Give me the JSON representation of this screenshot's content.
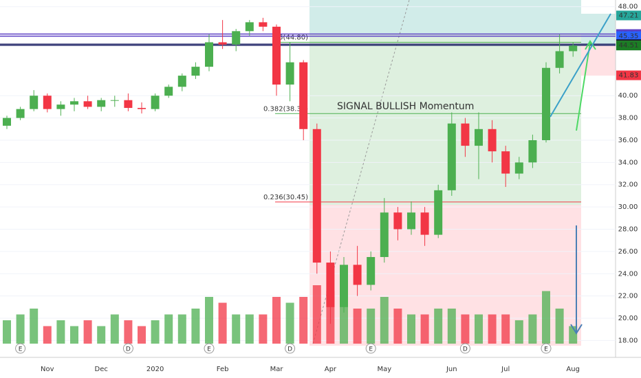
{
  "chart_data": {
    "type": "candlestick",
    "categories": [
      null,
      null,
      null,
      "Nov",
      null,
      null,
      null,
      "Dec",
      null,
      null,
      null,
      "2020",
      null,
      null,
      null,
      null,
      "Feb",
      null,
      null,
      null,
      "Mar",
      null,
      null,
      null,
      "Apr",
      null,
      null,
      null,
      "May",
      null,
      null,
      null,
      null,
      "Jun",
      null,
      null,
      null,
      "Jul",
      null,
      null,
      null,
      null,
      "Aug"
    ],
    "open": [
      37.3,
      38.0,
      38.8,
      40.0,
      38.8,
      39.2,
      39.5,
      39.0,
      39.6,
      39.6,
      38.9,
      38.8,
      40.0,
      40.8,
      41.8,
      42.6,
      44.8,
      44.6,
      45.8,
      46.6,
      46.2,
      41.0,
      43.0,
      37.0,
      25.0,
      21.0,
      24.8,
      23.0,
      25.5,
      29.5,
      28.0,
      29.5,
      27.5,
      31.5,
      37.5,
      35.5,
      37.0,
      35.0,
      33.0,
      34.0,
      36.0,
      42.5,
      44.0
    ],
    "high": [
      38.2,
      39.0,
      40.5,
      40.2,
      39.5,
      39.8,
      40.0,
      39.8,
      40.0,
      40.2,
      39.4,
      40.2,
      41.0,
      42.0,
      43.0,
      45.5,
      46.8,
      46.0,
      46.8,
      47.0,
      46.4,
      44.8,
      43.2,
      37.5,
      26.0,
      25.5,
      26.5,
      26.0,
      30.8,
      30.0,
      30.5,
      30.0,
      32.0,
      38.5,
      38.0,
      38.5,
      37.8,
      35.5,
      34.5,
      36.5,
      43.0,
      45.5,
      44.8
    ],
    "low": [
      37.0,
      37.8,
      38.6,
      38.5,
      38.2,
      38.6,
      38.8,
      38.6,
      39.0,
      38.6,
      38.4,
      38.6,
      39.8,
      40.4,
      41.5,
      42.2,
      44.2,
      44.0,
      45.4,
      45.8,
      40.0,
      39.5,
      36.0,
      24.0,
      19.5,
      20.5,
      22.0,
      22.5,
      25.0,
      27.0,
      27.5,
      26.5,
      27.2,
      31.0,
      34.5,
      32.5,
      34.0,
      31.8,
      32.5,
      33.5,
      35.8,
      42.0,
      43.5
    ],
    "close": [
      38.0,
      38.8,
      40.0,
      38.8,
      39.2,
      39.5,
      39.0,
      39.6,
      39.6,
      38.9,
      38.8,
      40.0,
      40.8,
      41.8,
      42.6,
      44.8,
      44.6,
      45.8,
      46.6,
      46.2,
      41.0,
      43.0,
      37.0,
      25.0,
      21.0,
      24.8,
      23.0,
      25.5,
      29.5,
      28.0,
      29.5,
      27.5,
      31.5,
      37.5,
      35.5,
      37.0,
      35.0,
      33.0,
      34.0,
      36.0,
      42.5,
      44.0,
      44.5
    ],
    "volume": [
      4,
      5,
      6,
      3,
      4,
      3,
      4,
      3,
      5,
      4,
      3,
      4,
      5,
      5,
      6,
      8,
      7,
      5,
      5,
      5,
      8,
      7,
      8,
      10,
      9,
      7,
      6,
      6,
      8,
      6,
      5,
      5,
      6,
      6,
      5,
      5,
      5,
      5,
      4,
      5,
      9,
      6,
      3
    ],
    "up_color": "#4caf50",
    "down_color": "#f23645",
    "ylim": [
      16.48,
      48.6
    ],
    "yticks": [
      {
        "value": 18,
        "label": "18.00"
      },
      {
        "value": 20,
        "label": "20.00"
      },
      {
        "value": 22,
        "label": "22.00"
      },
      {
        "value": 24,
        "label": "24.00"
      },
      {
        "value": 26,
        "label": "26.00"
      },
      {
        "value": 28,
        "label": "28.00"
      },
      {
        "value": 30,
        "label": "30.00"
      },
      {
        "value": 32,
        "label": "32.00"
      },
      {
        "value": 34,
        "label": "34.00"
      },
      {
        "value": 36,
        "label": "36.00"
      },
      {
        "value": 38,
        "label": "38.00"
      },
      {
        "value": 40,
        "label": "40.00"
      },
      {
        "value": 48,
        "label": "48.00"
      }
    ],
    "grid": true,
    "levels": [
      {
        "value": 45.54,
        "color": "#5b3fc4"
      },
      {
        "value": 45.35,
        "color": "#5b3fc4"
      },
      {
        "value": 44.63,
        "color": "#2a2e6e"
      },
      {
        "value": 44.52,
        "color": "#2a2e6e"
      }
    ],
    "fib": [
      {
        "label": "0.5(44.80)",
        "value": 44.8,
        "color": "#4caf50"
      },
      {
        "label": "0.382(38.39)",
        "value": 38.39,
        "color": "#4caf50"
      },
      {
        "label": "0.236(30.45)",
        "value": 30.45,
        "color": "#f23645"
      }
    ],
    "price_labels": [
      {
        "value": 47.21,
        "color": "#26a69a"
      },
      {
        "value": 45.54,
        "color": "#5b3fc4"
      },
      {
        "value": 45.35,
        "color": "#2962ff"
      },
      {
        "value": 44.63,
        "color": "#131722"
      },
      {
        "value": 44.52,
        "color": "#787b86"
      },
      {
        "value": 44.51,
        "color": "#1b7d24"
      },
      {
        "value": 41.83,
        "color": "#f23645"
      }
    ],
    "annotation": "SIGNAL BULLISH Momentum",
    "events": [
      {
        "label": "E",
        "index": 1
      },
      {
        "label": "D",
        "index": 9
      },
      {
        "label": "E",
        "index": 15
      },
      {
        "label": "D",
        "index": 21
      },
      {
        "label": "E",
        "index": 27
      },
      {
        "label": "D",
        "index": 34
      },
      {
        "label": "E",
        "index": 40
      }
    ]
  }
}
